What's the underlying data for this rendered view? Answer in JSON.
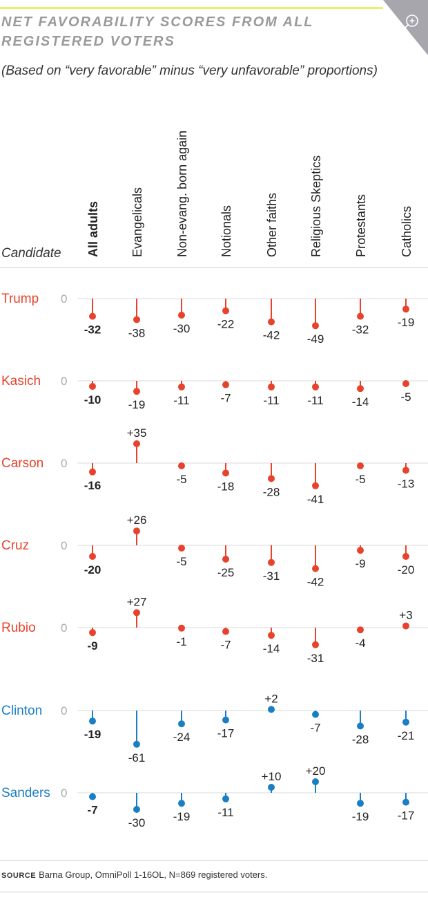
{
  "title": "NET FAVORABILITY SCORES FROM ALL REGISTERED VOTERS",
  "subtitle": "(Based on “very favorable” minus “very unfavorable” proportions)",
  "source_label": "SOURCE",
  "source_text": "Barna Group, OmniPoll 1-16OL, N=869 registered voters.",
  "zoom_icon": "zoom-in-icon",
  "colors": {
    "republican": "#e8412c",
    "democrat": "#1a7ec3",
    "zero_line": "#d8d8d8",
    "accent_bar": "#e9f06a",
    "zoom_bg": "#a8a6ad"
  },
  "chart_data": {
    "type": "dot-stem",
    "row_header": "Candidate",
    "zero_label": "0",
    "groups": [
      "All adults",
      "Evangelicals",
      "Non-evang. born again",
      "Notionals",
      "Other faiths",
      "Religious Skeptics",
      "Protestants",
      "Catholics"
    ],
    "series": [
      {
        "name": "Trump",
        "party": "republican",
        "values": [
          -32,
          -38,
          -30,
          -22,
          -42,
          -49,
          -32,
          -19
        ]
      },
      {
        "name": "Kasich",
        "party": "republican",
        "values": [
          -10,
          -19,
          -11,
          -7,
          -11,
          -11,
          -14,
          -5
        ]
      },
      {
        "name": "Carson",
        "party": "republican",
        "values": [
          -16,
          35,
          -5,
          -18,
          -28,
          -41,
          -5,
          -13
        ]
      },
      {
        "name": "Cruz",
        "party": "republican",
        "values": [
          -20,
          26,
          -5,
          -25,
          -31,
          -42,
          -9,
          -20
        ]
      },
      {
        "name": "Rubio",
        "party": "republican",
        "values": [
          -9,
          27,
          -1,
          -7,
          -14,
          -31,
          -4,
          3
        ]
      },
      {
        "name": "Clinton",
        "party": "democrat",
        "values": [
          -19,
          -61,
          -24,
          -17,
          2,
          -7,
          -28,
          -21
        ]
      },
      {
        "name": "Sanders",
        "party": "democrat",
        "values": [
          -7,
          -30,
          -19,
          -11,
          10,
          20,
          -19,
          -17
        ]
      }
    ]
  }
}
